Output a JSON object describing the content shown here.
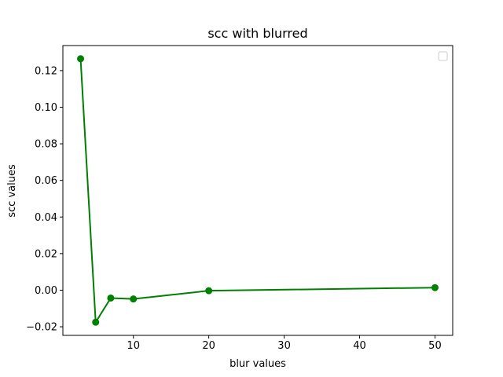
{
  "chart_data": {
    "type": "line",
    "title": "scc with blurred",
    "xlabel": "blur values",
    "ylabel": "scc values",
    "x": [
      3,
      5,
      7,
      10,
      20,
      50
    ],
    "series": [
      {
        "values": [
          0.1265,
          -0.0175,
          -0.0043,
          -0.0048,
          -0.0003,
          0.0014
        ],
        "color": "#008000",
        "marker": "circle"
      }
    ],
    "xlim": [
      0.65,
      52.35
    ],
    "ylim": [
      -0.0247,
      0.1337
    ],
    "xticks": [
      10,
      20,
      30,
      40,
      50
    ],
    "yticks": [
      -0.02,
      0.0,
      0.02,
      0.04,
      0.06,
      0.08,
      0.1,
      0.12
    ],
    "ytick_labels": [
      "−0.02",
      "0.00",
      "0.02",
      "0.04",
      "0.06",
      "0.08",
      "0.10",
      "0.12"
    ],
    "grid": false,
    "legend": {
      "placement": "top-right",
      "entries": []
    }
  }
}
